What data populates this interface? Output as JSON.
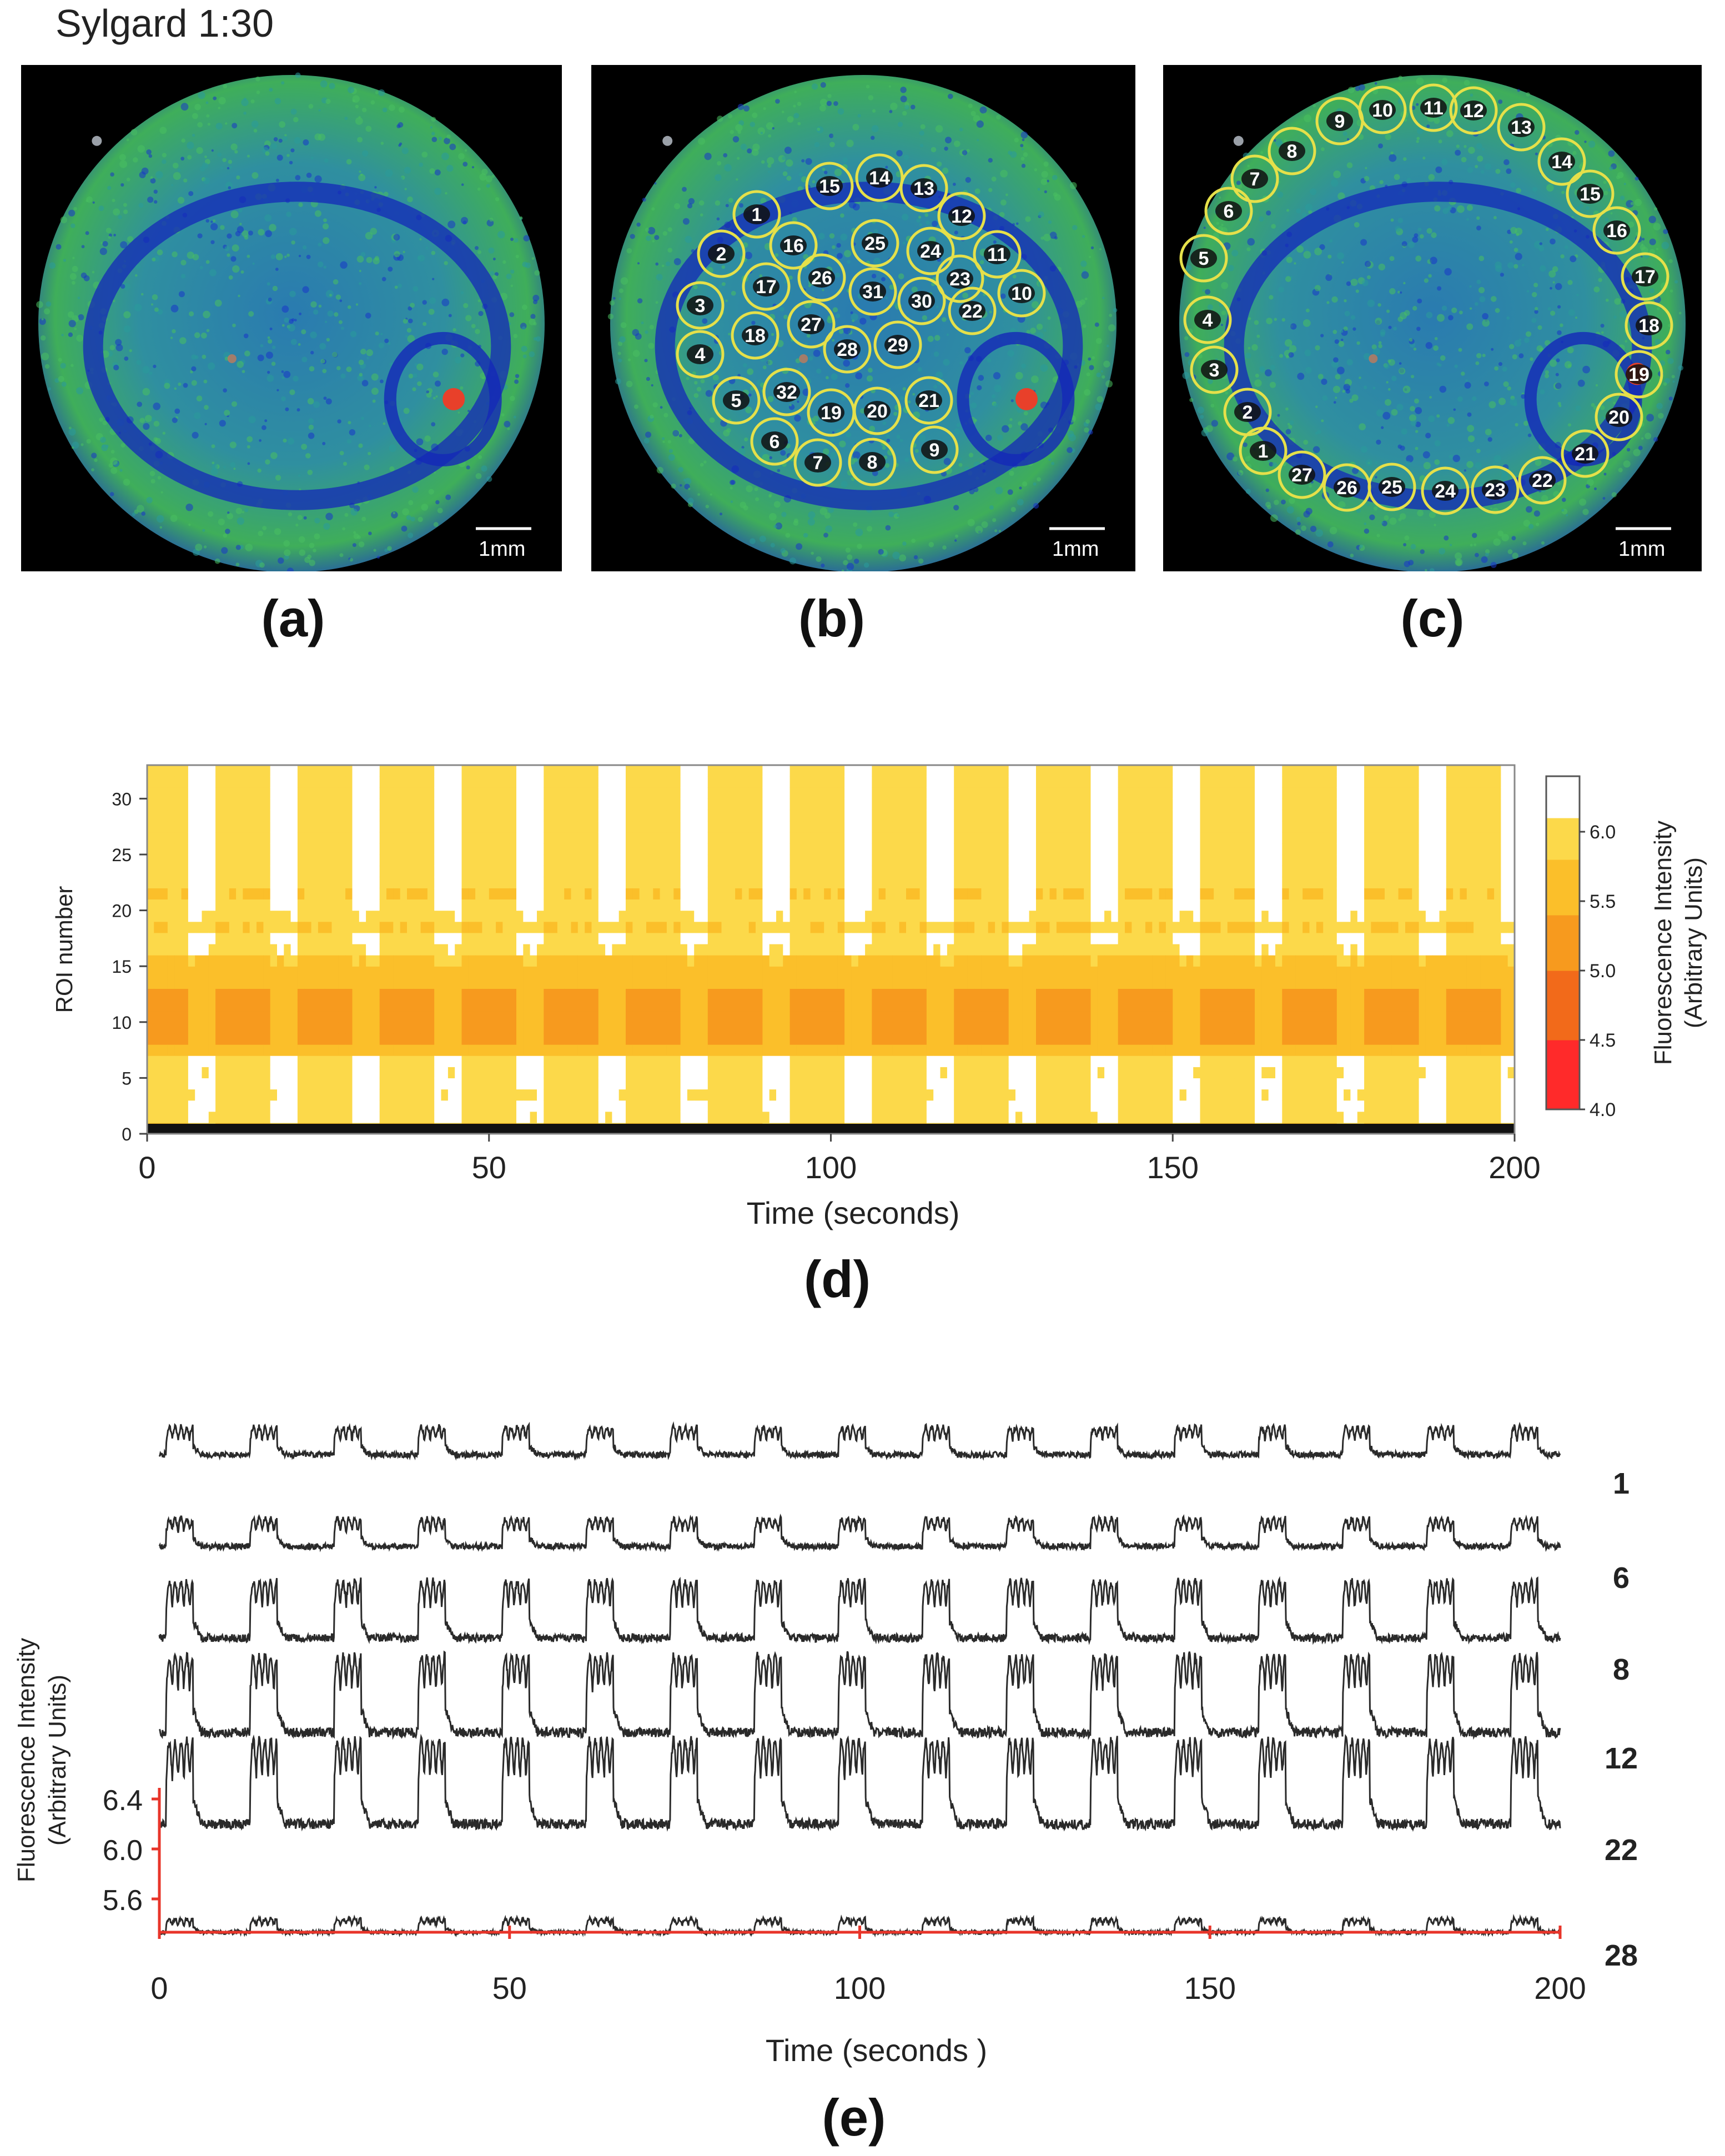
{
  "figure": {
    "title": "Sylgard 1:30",
    "panel_labels": {
      "a": "(a)",
      "b": "(b)",
      "c": "(c)",
      "d": "(d)",
      "e": "(e)"
    },
    "scale_bar": "1mm"
  },
  "rois_b": [
    "1",
    "2",
    "3",
    "4",
    "5",
    "6",
    "7",
    "8",
    "9",
    "10",
    "11",
    "12",
    "13",
    "14",
    "15",
    "16",
    "17",
    "18",
    "19",
    "20",
    "21",
    "22",
    "23",
    "24",
    "25",
    "26",
    "27",
    "28",
    "29",
    "30",
    "31",
    "32"
  ],
  "rois_c": [
    "1",
    "2",
    "3",
    "4",
    "5",
    "6",
    "7",
    "8",
    "9",
    "10",
    "11",
    "12",
    "13",
    "14",
    "15",
    "16",
    "17",
    "18",
    "19",
    "20",
    "21",
    "22",
    "23",
    "24",
    "25",
    "26",
    "27"
  ],
  "colors": {
    "micro_bg": "#000000",
    "cell_blue": "#1a2fc0",
    "cell_green": "#3fae5a",
    "roi_circle": "#e5e04a",
    "hot_spot": "#e8402a",
    "axis_red": "#e8352a",
    "trace": "#2a2a2a"
  },
  "chart_data": [
    {
      "type": "heatmap",
      "panel": "(d)",
      "xlabel": "Time (seconds)",
      "ylabel": "ROI number",
      "xlim": [
        0,
        200
      ],
      "ylim": [
        0,
        33
      ],
      "xticks": [
        "0",
        "50",
        "100",
        "150",
        "200"
      ],
      "yticks": [
        "0",
        "5",
        "10",
        "15",
        "20",
        "25",
        "30"
      ],
      "colorbar": {
        "label_line1": "Fluorescence Intensity",
        "label_line2": "(Arbitrary Units)",
        "range": [
          4.0,
          6.4
        ],
        "ticks": [
          "4.0",
          "4.5",
          "5.0",
          "5.5",
          "6.0"
        ]
      },
      "burst_period_s": 12,
      "burst_count": 17
    },
    {
      "type": "line",
      "panel": "(e)",
      "xlabel": "Time (seconds )",
      "ylabel_line1": "Fluorescence Intensity",
      "ylabel_line2": "(Arbitrary Units)",
      "xlim": [
        0,
        200
      ],
      "xticks": [
        "0",
        "50",
        "100",
        "150",
        "200"
      ],
      "yscale_ticks": [
        "6.4",
        "6.0",
        "5.6"
      ],
      "series": [
        {
          "name": "1",
          "amplitude": 0.55
        },
        {
          "name": "6",
          "amplitude": 0.55
        },
        {
          "name": "8",
          "amplitude": 0.85
        },
        {
          "name": "12",
          "amplitude": 0.95
        },
        {
          "name": "22",
          "amplitude": 1.0
        },
        {
          "name": "28",
          "amplitude": 0.4
        }
      ]
    }
  ]
}
